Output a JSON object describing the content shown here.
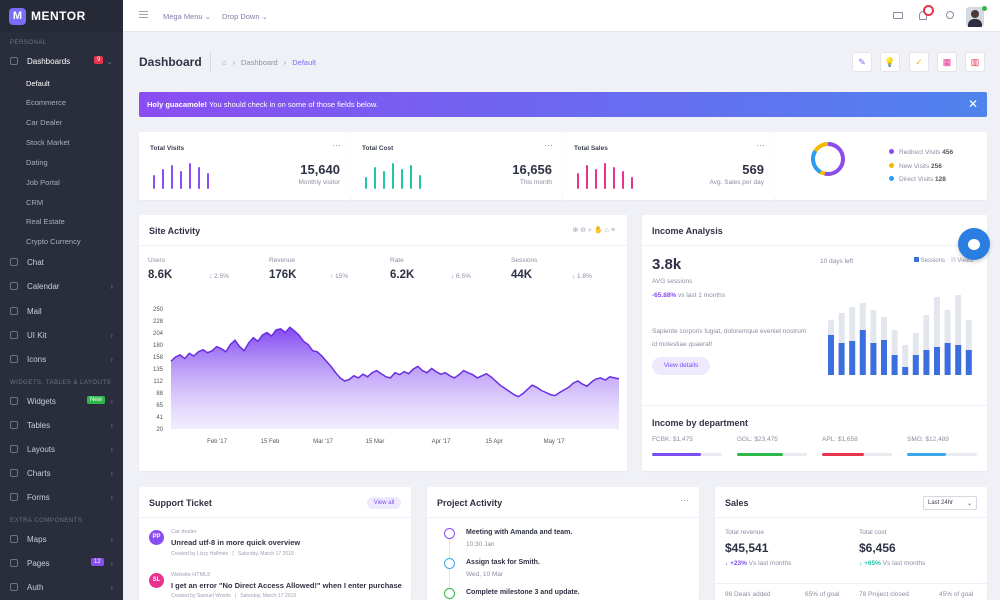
{
  "brand": {
    "name": "MENTOR",
    "mark": "M"
  },
  "sidebar": {
    "personal": "PERSONAL",
    "dashboards": "Dashboards",
    "dashboards_badge": "9",
    "sub": [
      "Default",
      "Ecommerce",
      "Car Dealer",
      "Stock Market",
      "Dating",
      "Job Portal",
      "CRM",
      "Real Estate",
      "Crypto Currency"
    ],
    "chat": "Chat",
    "calendar": "Calendar",
    "mail": "Mail",
    "uikit": "UI Kit",
    "icons": "Icons",
    "widgets_section": "WIDGETS, TABLES & LAYOUTS",
    "widgets": "Widgets",
    "widgets_badge": "New",
    "tables": "Tables",
    "layouts": "Layouts",
    "charts": "Charts",
    "forms": "Forms",
    "extra_section": "EXTRA COMPONENTS",
    "maps": "Maps",
    "pages": "Pages",
    "pages_badge": "12",
    "auth": "Auth"
  },
  "topbar": {
    "mega_menu": "Mega Menu",
    "drop_down": "Drop Down"
  },
  "page": {
    "title": "Dashboard",
    "crumb1": "Dashboard",
    "crumb2": "Default"
  },
  "alert": {
    "strong": "Holy guacamole!",
    "text": " You should check in on some of those fields below."
  },
  "stats": [
    {
      "title": "Total Visits",
      "value": "15,640",
      "caption": "Monthly visitor",
      "color": "#8a4df2"
    },
    {
      "title": "Total Cost",
      "value": "16,656",
      "caption": "This month",
      "color": "#22c5a8"
    },
    {
      "title": "Total Sales",
      "value": "569",
      "caption": "Avg. Sales per day",
      "color": "#e7338e"
    }
  ],
  "donut": {
    "legend": [
      {
        "label": "Redirect Visits",
        "value": "456",
        "color": "#8a4df2"
      },
      {
        "label": "New Visits",
        "value": "256",
        "color": "#f5b800"
      },
      {
        "label": "Direct Visits",
        "value": "128",
        "color": "#2a9df4"
      }
    ]
  },
  "site_activity": {
    "title": "Site Activity",
    "kpis": [
      {
        "label": "Users",
        "value": "8.6K",
        "delta": "2.5%",
        "dir": "down"
      },
      {
        "label": "Revenue",
        "value": "176K",
        "delta": "15%",
        "dir": "up"
      },
      {
        "label": "Rate",
        "value": "6.2K",
        "delta": "6.5%",
        "dir": "down"
      },
      {
        "label": "Sessions",
        "value": "44K",
        "delta": "1.8%",
        "dir": "down"
      }
    ]
  },
  "chart_data": {
    "type": "area",
    "yticks": [
      "250",
      "228",
      "204",
      "180",
      "158",
      "135",
      "112",
      "88",
      "65",
      "41",
      "20"
    ],
    "ylim": [
      20,
      250
    ],
    "xticks": [
      "Feb '17",
      "15 Feb",
      "Mar '17",
      "15 Mar",
      "Apr '17",
      "15 Apr",
      "May '17"
    ],
    "values": [
      150,
      158,
      162,
      155,
      165,
      160,
      168,
      172,
      166,
      170,
      178,
      174,
      168,
      182,
      190,
      178,
      170,
      185,
      195,
      188,
      200,
      205,
      198,
      210,
      212,
      205,
      215,
      208,
      200,
      188,
      182,
      170,
      168,
      160,
      150,
      140,
      128,
      118,
      112,
      115,
      122,
      118,
      125,
      120,
      128,
      132,
      126,
      120,
      118,
      128,
      124,
      130,
      126,
      135,
      140,
      132,
      128,
      136,
      130,
      125,
      128,
      122,
      118,
      124,
      132,
      128,
      124,
      118,
      122,
      126,
      120,
      112,
      104,
      98,
      92,
      86,
      82,
      88,
      96,
      104,
      100,
      94,
      90,
      86,
      84,
      90,
      95,
      100,
      108,
      112,
      106,
      102,
      110,
      116,
      118,
      114,
      120,
      118,
      116
    ]
  },
  "income": {
    "title": "Income Analysis",
    "value": "3.8k",
    "label": "AVG sessions",
    "delta": "-65.88%",
    "delta_rest": " vs last 1 months",
    "days_left": "10 days left",
    "legend_sessions": "Sessions",
    "legend_views": "Views",
    "text": "Sapiente corporis fugiat, doloremque eveniet nostrum id molestiae quaerat!",
    "button": "View details",
    "bars_sessions": [
      40,
      32,
      34,
      45,
      32,
      35,
      20,
      8,
      20,
      25,
      28,
      32,
      30,
      25
    ],
    "bars_views": [
      55,
      62,
      68,
      72,
      65,
      58,
      45,
      30,
      42,
      60,
      78,
      65,
      80,
      55
    ],
    "dept_title": "Income by department",
    "depts": [
      {
        "label": "FCBK: $1,475",
        "color": "#7b4ef2",
        "fill": 0.7
      },
      {
        "label": "GGL: $23,475",
        "color": "#2eb84a",
        "fill": 0.65
      },
      {
        "label": "APL: $1,658",
        "color": "#e8344c",
        "fill": 0.6
      },
      {
        "label": "SMG: $12,489",
        "color": "#3ba7e8",
        "fill": 0.55
      }
    ]
  },
  "support": {
    "title": "Support Ticket",
    "view_all": "View all",
    "items": [
      {
        "initials": "PP",
        "color": "#8a4df2",
        "cat": "Car dealer",
        "title": "Unread utf-8 in more quick overview",
        "meta": "Created by Lizzy Halfmen   |   Saturday, March 17 2019"
      },
      {
        "initials": "SL",
        "color": "#e7338e",
        "cat": "Website HTML5",
        "title": "I get an error \"No Direct Access Allowed!\" when I enter purchase",
        "meta": "Created by Samuel Woods   |   Saturday, March 17 2019"
      }
    ]
  },
  "project": {
    "title": "Project Activity",
    "items": [
      {
        "title": "Meeting with Amanda and team.",
        "time": "10:30 Jan",
        "color": "#8a4df2"
      },
      {
        "title": "Assign task for Smith.",
        "time": "Wed, 10 Mar",
        "color": "#3ba7e8"
      },
      {
        "title": "Complete milestone 3 and update.",
        "time": "",
        "color": "#2eb84a"
      }
    ]
  },
  "sales": {
    "title": "Sales",
    "select": "Last 24hr",
    "rev_label": "Total revenue",
    "rev_value": "$45,541",
    "rev_delta": "+23%",
    "rev_rest": " Vs last months",
    "cost_label": "Total cost",
    "cost_value": "$6,456",
    "cost_delta": "+65%",
    "cost_rest": " Vs last months",
    "deals": "86 Deals added",
    "deals_goal": "65% of goal",
    "projects": "78 Project closed",
    "projects_goal": "45% of goal"
  }
}
